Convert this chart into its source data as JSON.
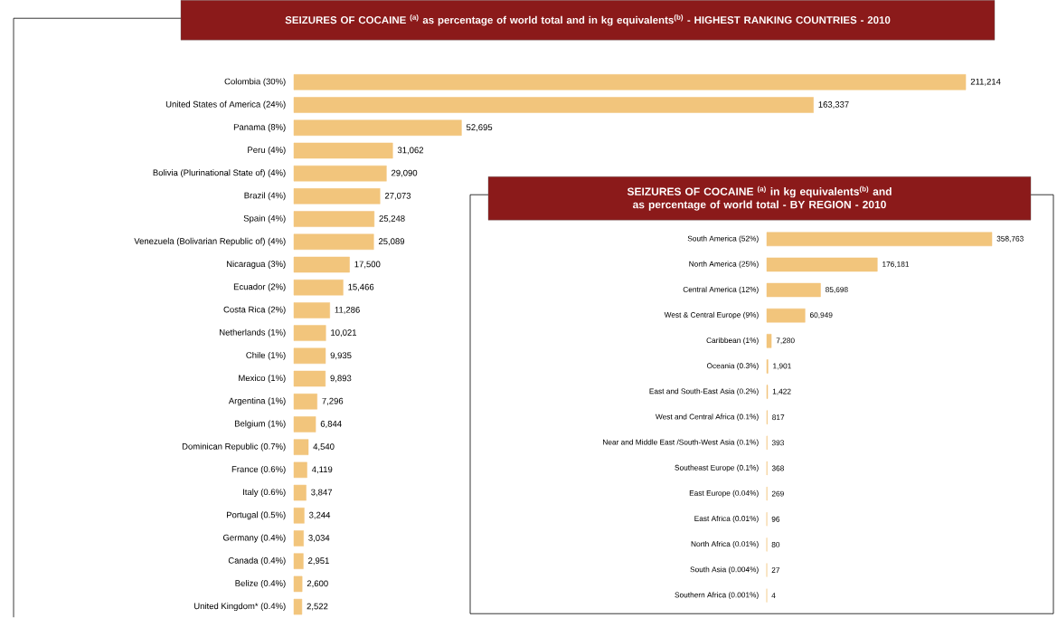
{
  "chart_data": [
    {
      "type": "bar",
      "orientation": "horizontal",
      "title": "SEIZURES OF COCAINE $^{(a)}$ as percentage of world total and in kg equivalents$^{(b)}$ - HIGHEST RANKING COUNTRIES - 2010",
      "color": "#f2c57c",
      "categories": [
        "Colombia (30%)",
        "United States of America (24%)",
        "Panama (8%)",
        "Peru (4%)",
        "Bolivia (Plurinational State of) (4%)",
        "Brazil (4%)",
        "Spain (4%)",
        "Venezuela (Bolivarian Republic of) (4%)",
        "Nicaragua (3%)",
        "Ecuador (2%)",
        "Costa Rica (2%)",
        "Netherlands (1%)",
        "Chile (1%)",
        "Mexico (1%)",
        "Argentina (1%)",
        "Belgium (1%)",
        "Dominican Republic (0.7%)",
        "France (0.6%)",
        "Italy (0.6%)",
        "Portugal (0.5%)",
        "Germany (0.4%)",
        "Canada (0.4%)",
        "Belize (0.4%)",
        "United Kingdom* (0.4%)"
      ],
      "values": [
        211214,
        163337,
        52695,
        31062,
        29090,
        27073,
        25248,
        25089,
        17500,
        15466,
        11286,
        10021,
        9935,
        9893,
        7296,
        6844,
        4540,
        4119,
        3847,
        3244,
        3034,
        2951,
        2600,
        2522
      ],
      "value_labels": [
        "211,214",
        "163,337",
        "52,695",
        "31,062",
        "29,090",
        "27,073",
        "25,248",
        "25,089",
        "17,500",
        "15,466",
        "11,286",
        "10,021",
        "9,935",
        "9,893",
        "7,296",
        "6,844",
        "4,540",
        "4,119",
        "3,847",
        "3,244",
        "3,034",
        "2,951",
        "2,600",
        "2,522"
      ]
    },
    {
      "type": "bar",
      "orientation": "horizontal",
      "title": "SEIZURES OF COCAINE $^{(a)}$ in kg equivalents$^{(b)}$ and as percentage of world total - BY REGION - 2010",
      "color": "#f2c57c",
      "categories": [
        "South America (52%)",
        "North America (25%)",
        "Central America (12%)",
        "West & Central Europe (9%)",
        "Caribbean (1%)",
        "Oceania (0.3%)",
        "East and South-East Asia (0.2%)",
        "West and Central Africa (0.1%)",
        "Near and Middle East /South-West Asia (0.1%)",
        "Southeast Europe (0.1%)",
        "East Europe (0.04%)",
        "East Africa (0.01%)",
        "North Africa (0.01%)",
        "South Asia (0.004%)",
        "Southern Africa (0.001%)"
      ],
      "values": [
        358763,
        176181,
        85698,
        60949,
        7280,
        1901,
        1422,
        817,
        393,
        368,
        269,
        96,
        80,
        27,
        4
      ],
      "value_labels": [
        "358,763",
        "176,181",
        "85,698",
        "60,949",
        "7,280",
        "1,901",
        "1,422",
        "817",
        "393",
        "368",
        "269",
        "96",
        "80",
        "27",
        "4"
      ]
    }
  ]
}
